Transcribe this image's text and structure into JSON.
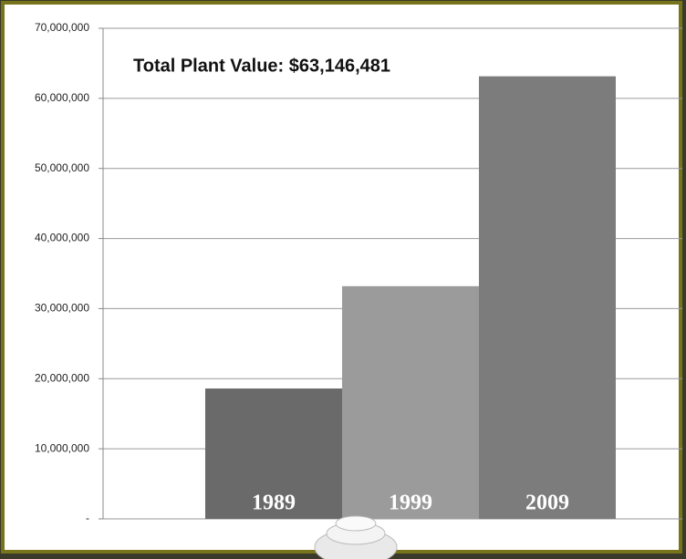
{
  "chart_data": {
    "type": "bar",
    "annotation": "Total Plant Value: $63,146,481",
    "categories": [
      "1989",
      "1999",
      "2009"
    ],
    "values": [
      18600000,
      33200000,
      63146481
    ],
    "colors": [
      "#6a6a6a",
      "#9b9b9b",
      "#7c7c7c"
    ],
    "ylim": [
      0,
      70000000
    ],
    "yticks": [
      {
        "value": 0,
        "label": "-"
      },
      {
        "value": 10000000,
        "label": "10,000,000"
      },
      {
        "value": 20000000,
        "label": "20,000,000"
      },
      {
        "value": 30000000,
        "label": "30,000,000"
      },
      {
        "value": 40000000,
        "label": "40,000,000"
      },
      {
        "value": 50000000,
        "label": "50,000,000"
      },
      {
        "value": 60000000,
        "label": "60,000,000"
      },
      {
        "value": 70000000,
        "label": "70,000,000"
      }
    ],
    "grid": true
  }
}
